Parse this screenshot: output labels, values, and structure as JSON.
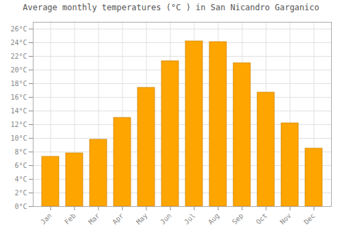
{
  "chart_data": {
    "type": "bar",
    "title": "Average monthly temperatures (°C ) in San Nicandro Garganico",
    "categories": [
      "Jan",
      "Feb",
      "Mar",
      "Apr",
      "May",
      "Jun",
      "Jul",
      "Aug",
      "Sep",
      "Oct",
      "Nov",
      "Dec"
    ],
    "values": [
      7.3,
      7.8,
      9.8,
      13.0,
      17.4,
      21.3,
      24.2,
      24.1,
      21.0,
      16.7,
      12.2,
      8.5
    ],
    "color": "#FFA500",
    "ylim": [
      0,
      27
    ],
    "yticks": [
      {
        "value": 0,
        "label": "0°C"
      },
      {
        "value": 2,
        "label": "2°C"
      },
      {
        "value": 4,
        "label": "4°C"
      },
      {
        "value": 6,
        "label": "6°C"
      },
      {
        "value": 8,
        "label": "8°C"
      },
      {
        "value": 10,
        "label": "10°C"
      },
      {
        "value": 12,
        "label": "12°C"
      },
      {
        "value": 14,
        "label": "14°C"
      },
      {
        "value": 16,
        "label": "16°C"
      },
      {
        "value": 18,
        "label": "18°C"
      },
      {
        "value": 20,
        "label": "20°C"
      },
      {
        "value": 22,
        "label": "22°C"
      },
      {
        "value": 24,
        "label": "24°C"
      },
      {
        "value": 26,
        "label": "26°C"
      }
    ],
    "grid": true
  }
}
